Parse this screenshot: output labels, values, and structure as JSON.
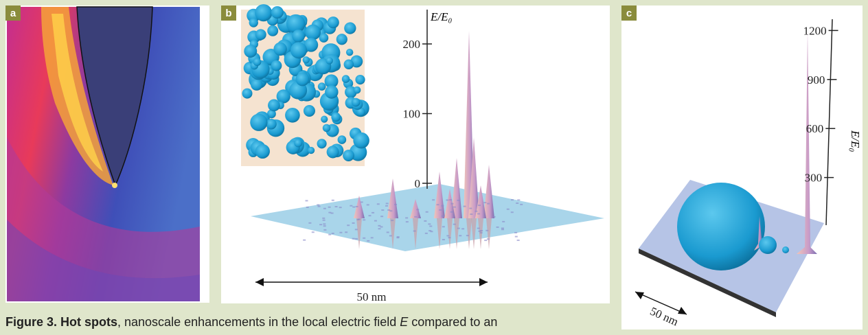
{
  "panels": [
    {
      "label": "a"
    },
    {
      "label": "b",
      "axis_label": "E/E₀",
      "ticks": [
        0,
        100,
        200
      ],
      "scale_bar": "50 nm"
    },
    {
      "label": "c",
      "axis_label": "E/E₀",
      "ticks": [
        300,
        600,
        900,
        1200
      ],
      "scale_bar": "50 nm"
    }
  ],
  "caption": {
    "title": "Figure 3. Hot spots",
    "text": ", nanoscale enhancements in the local electric field ",
    "variable": "E",
    "text2": " compared to an"
  }
}
